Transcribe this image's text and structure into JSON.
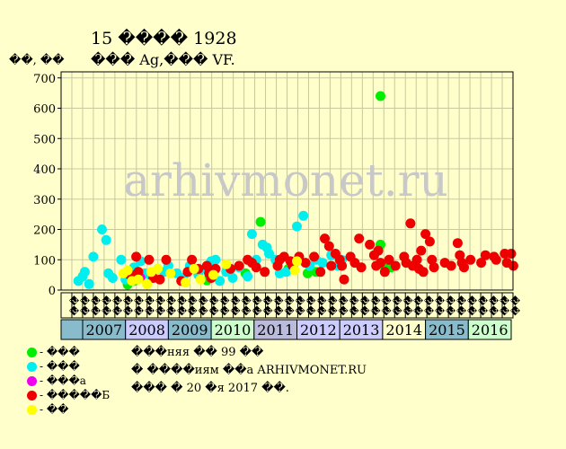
{
  "header": {
    "title": "15 ���� 1928",
    "subtitle": "��� Ag,��� VF.",
    "y_unit": "��, ��"
  },
  "legend": [
    {
      "label": "- ���",
      "color": "#00ee00"
    },
    {
      "label": "- ���",
      "color": "#00eeee"
    },
    {
      "label": "- ���а",
      "color": "#ee00ee"
    },
    {
      "label": "- �����Б",
      "color": "#ee0000"
    },
    {
      "label": "- ��",
      "color": "#ffff00"
    }
  ],
  "notes": [
    "���няя �� 99 ��",
    "� ����иям ��а ARHIVMONET.RU",
    "��� � 20 �я 2017 ��."
  ],
  "watermark": "arhivmonet.ru",
  "chart_data": {
    "type": "scatter",
    "ylim": [
      0,
      720
    ],
    "yticks": [
      0,
      100,
      200,
      300,
      400,
      500,
      600,
      700
    ],
    "grid": true,
    "years": [
      "2007",
      "2008",
      "2009",
      "2010",
      "2011",
      "2012",
      "2013",
      "2014",
      "2015",
      "2016"
    ],
    "year_colors": [
      "#88bbcc",
      "#ccccff",
      "#88bbcc",
      "#ccffcc",
      "#bbbbdd",
      "#ccccff",
      "#ccccff",
      "#ffffcc",
      "#88bbcc",
      "#ccffcc"
    ],
    "months_per_year": 4,
    "month_labels": [
      "��",
      "��",
      "��",
      "��",
      "��",
      "��",
      "��",
      "��",
      "��",
      "��",
      "��",
      "��",
      "��",
      "��",
      "��",
      "��",
      "��",
      "��",
      "��",
      "��",
      "��",
      "��",
      "��",
      "��",
      "��",
      "��",
      "��",
      "��",
      "��",
      "��",
      "��",
      "��",
      "��",
      "��",
      "��",
      "��",
      "��",
      "��",
      "��",
      "��",
      "��",
      "��"
    ],
    "series": [
      {
        "name": "- ���",
        "color": "#00ee00",
        "points": [
          [
            2008.05,
            18
          ],
          [
            2008.2,
            30
          ],
          [
            2009.9,
            32
          ],
          [
            2010.8,
            55
          ],
          [
            2011.15,
            225
          ],
          [
            2011.8,
            70
          ],
          [
            2012.25,
            55
          ],
          [
            2012.45,
            60
          ],
          [
            2013.95,
            150
          ],
          [
            2014.0,
            85
          ],
          [
            2013.95,
            640
          ],
          [
            2014.2,
            75
          ]
        ]
      },
      {
        "name": "- ���",
        "color": "#00eeee",
        "points": [
          [
            2006.9,
            30
          ],
          [
            2007.0,
            45
          ],
          [
            2007.05,
            60
          ],
          [
            2007.15,
            20
          ],
          [
            2007.25,
            110
          ],
          [
            2007.45,
            200
          ],
          [
            2007.55,
            165
          ],
          [
            2007.6,
            55
          ],
          [
            2007.7,
            40
          ],
          [
            2007.9,
            100
          ],
          [
            2008.0,
            35
          ],
          [
            2008.05,
            60
          ],
          [
            2008.2,
            75
          ],
          [
            2008.35,
            95
          ],
          [
            2008.45,
            55
          ],
          [
            2008.6,
            40
          ],
          [
            2008.75,
            70
          ],
          [
            2008.9,
            60
          ],
          [
            2009.0,
            80
          ],
          [
            2009.2,
            55
          ],
          [
            2009.35,
            40
          ],
          [
            2009.5,
            80
          ],
          [
            2009.7,
            50
          ],
          [
            2009.85,
            70
          ],
          [
            2010.0,
            95
          ],
          [
            2010.1,
            100
          ],
          [
            2010.2,
            30
          ],
          [
            2010.35,
            60
          ],
          [
            2010.5,
            40
          ],
          [
            2010.65,
            75
          ],
          [
            2010.85,
            45
          ],
          [
            2010.95,
            185
          ],
          [
            2011.05,
            100
          ],
          [
            2011.2,
            150
          ],
          [
            2011.3,
            140
          ],
          [
            2011.35,
            120
          ],
          [
            2011.5,
            100
          ],
          [
            2011.6,
            55
          ],
          [
            2011.75,
            60
          ],
          [
            2011.9,
            90
          ],
          [
            2012.0,
            210
          ],
          [
            2012.15,
            245
          ],
          [
            2012.3,
            80
          ],
          [
            2012.45,
            100
          ],
          [
            2012.6,
            90
          ],
          [
            2012.8,
            115
          ],
          [
            2012.95,
            80
          ],
          [
            2013.05,
            100
          ]
        ]
      },
      {
        "name": "- ���а",
        "color": "#ee00ee",
        "points": [
          [
            2008.15,
            50
          ],
          [
            2008.35,
            40
          ]
        ]
      },
      {
        "name": "- �����Б",
        "color": "#ee0000",
        "points": [
          [
            2008.1,
            50
          ],
          [
            2008.25,
            110
          ],
          [
            2008.3,
            60
          ],
          [
            2008.55,
            100
          ],
          [
            2008.65,
            40
          ],
          [
            2008.8,
            35
          ],
          [
            2008.95,
            100
          ],
          [
            2009.3,
            30
          ],
          [
            2009.45,
            60
          ],
          [
            2009.55,
            100
          ],
          [
            2009.7,
            70
          ],
          [
            2009.9,
            80
          ],
          [
            2009.95,
            55
          ],
          [
            2010.0,
            40
          ],
          [
            2010.1,
            70
          ],
          [
            2010.45,
            70
          ],
          [
            2010.65,
            80
          ],
          [
            2010.85,
            100
          ],
          [
            2010.95,
            90
          ],
          [
            2011.05,
            75
          ],
          [
            2011.25,
            60
          ],
          [
            2011.55,
            80
          ],
          [
            2011.6,
            100
          ],
          [
            2011.7,
            110
          ],
          [
            2011.85,
            95
          ],
          [
            2011.9,
            80
          ],
          [
            2012.05,
            110
          ],
          [
            2012.2,
            90
          ],
          [
            2012.4,
            110
          ],
          [
            2012.55,
            60
          ],
          [
            2012.65,
            170
          ],
          [
            2012.75,
            145
          ],
          [
            2012.8,
            80
          ],
          [
            2012.9,
            120
          ],
          [
            2013.0,
            100
          ],
          [
            2013.05,
            80
          ],
          [
            2013.1,
            35
          ],
          [
            2013.25,
            110
          ],
          [
            2013.35,
            90
          ],
          [
            2013.45,
            170
          ],
          [
            2013.5,
            75
          ],
          [
            2013.7,
            150
          ],
          [
            2013.8,
            115
          ],
          [
            2013.85,
            80
          ],
          [
            2013.9,
            130
          ],
          [
            2013.95,
            90
          ],
          [
            2014.05,
            60
          ],
          [
            2014.15,
            100
          ],
          [
            2014.3,
            80
          ],
          [
            2014.5,
            110
          ],
          [
            2014.55,
            90
          ],
          [
            2014.65,
            220
          ],
          [
            2014.7,
            80
          ],
          [
            2014.8,
            100
          ],
          [
            2014.85,
            70
          ],
          [
            2014.9,
            130
          ],
          [
            2014.95,
            60
          ],
          [
            2015.0,
            185
          ],
          [
            2015.1,
            160
          ],
          [
            2015.15,
            100
          ],
          [
            2015.2,
            75
          ],
          [
            2015.45,
            90
          ],
          [
            2015.6,
            80
          ],
          [
            2015.75,
            155
          ],
          [
            2015.8,
            115
          ],
          [
            2015.85,
            90
          ],
          [
            2015.9,
            75
          ],
          [
            2016.05,
            100
          ],
          [
            2016.3,
            90
          ],
          [
            2016.4,
            115
          ],
          [
            2016.6,
            110
          ],
          [
            2016.65,
            100
          ],
          [
            2016.85,
            120
          ],
          [
            2016.9,
            90
          ],
          [
            2017.0,
            120
          ],
          [
            2017.05,
            80
          ]
        ]
      },
      {
        "name": "- ��",
        "color": "#ffff00",
        "points": [
          [
            2007.95,
            55
          ],
          [
            2008.05,
            65
          ],
          [
            2008.15,
            30
          ],
          [
            2008.3,
            35
          ],
          [
            2008.5,
            20
          ],
          [
            2008.6,
            60
          ],
          [
            2008.75,
            70
          ],
          [
            2009.05,
            55
          ],
          [
            2009.4,
            25
          ],
          [
            2009.6,
            70
          ],
          [
            2009.75,
            35
          ],
          [
            2010.05,
            50
          ],
          [
            2010.35,
            85
          ],
          [
            2011.95,
            65
          ],
          [
            2012.0,
            95
          ]
        ]
      }
    ]
  }
}
